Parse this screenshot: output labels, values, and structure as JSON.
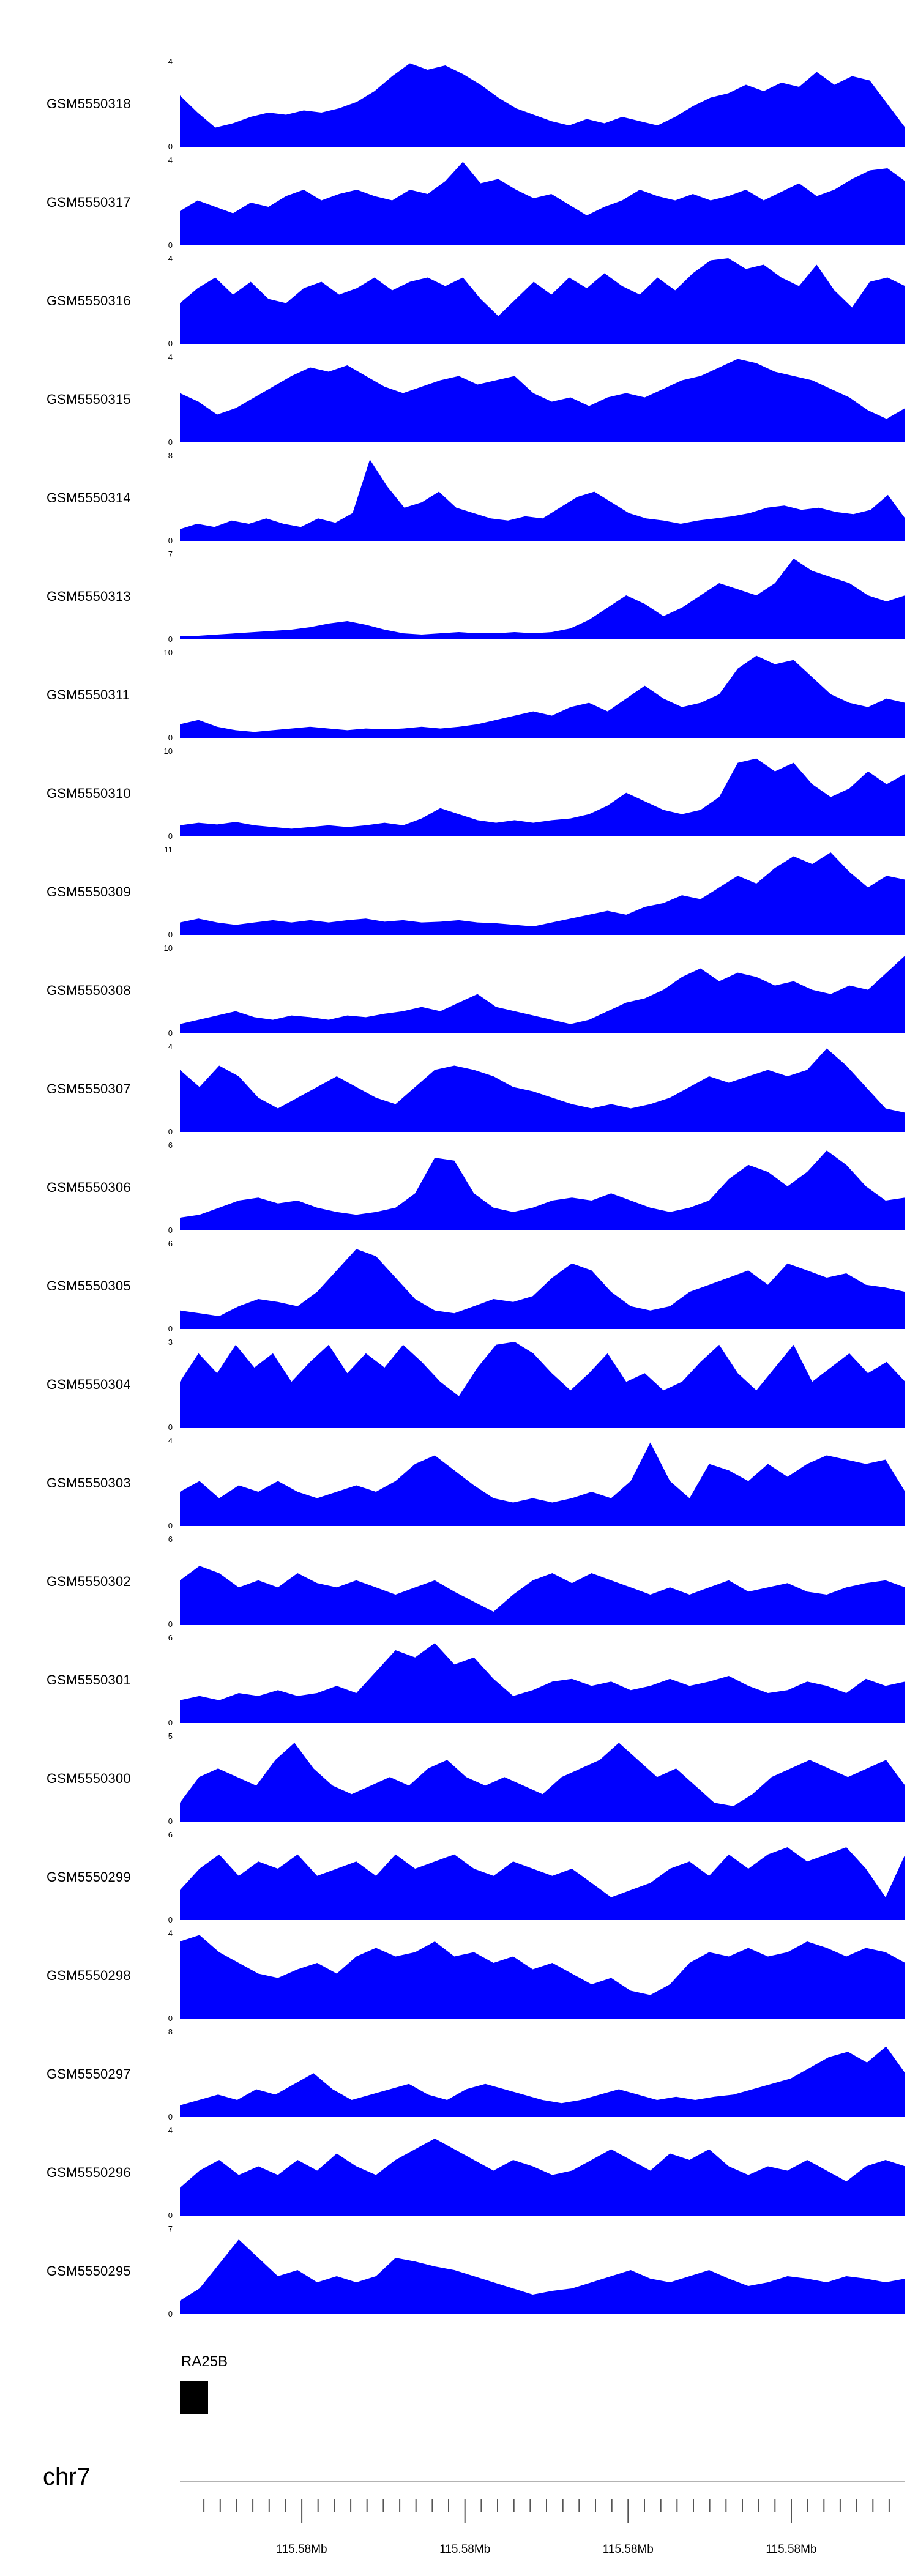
{
  "chart_data": {
    "type": "area",
    "title": "",
    "fill_color": "#0000FF",
    "x_axis": {
      "chromosome": "chr7",
      "tick_labels": [
        "115.58Mb",
        "115.58Mb",
        "115.58Mb",
        "115.58Mb"
      ],
      "tick_label_positions": [
        0.168,
        0.393,
        0.618,
        0.843
      ]
    },
    "gene_track": {
      "label": "RA25B"
    },
    "tracks": [
      {
        "id": "GSM5550318",
        "ymin": 0,
        "ymax": 4,
        "values": [
          2.4,
          1.6,
          0.9,
          1.1,
          1.4,
          1.6,
          1.5,
          1.7,
          1.6,
          1.8,
          2.1,
          2.6,
          3.3,
          3.9,
          3.6,
          3.8,
          3.4,
          2.9,
          2.3,
          1.8,
          1.5,
          1.2,
          1.0,
          1.3,
          1.1,
          1.4,
          1.2,
          1.0,
          1.4,
          1.9,
          2.3,
          2.5,
          2.9,
          2.6,
          3.0,
          2.8,
          3.5,
          2.9,
          3.3,
          3.1,
          2.0,
          0.9
        ]
      },
      {
        "id": "GSM5550317",
        "ymin": 0,
        "ymax": 4,
        "values": [
          1.6,
          2.1,
          1.8,
          1.5,
          2.0,
          1.8,
          2.3,
          2.6,
          2.1,
          2.4,
          2.6,
          2.3,
          2.1,
          2.6,
          2.4,
          3.0,
          3.9,
          2.9,
          3.1,
          2.6,
          2.2,
          2.4,
          1.9,
          1.4,
          1.8,
          2.1,
          2.6,
          2.3,
          2.1,
          2.4,
          2.1,
          2.3,
          2.6,
          2.1,
          2.5,
          2.9,
          2.3,
          2.6,
          3.1,
          3.5,
          3.6,
          3.0
        ]
      },
      {
        "id": "GSM5550316",
        "ymin": 0,
        "ymax": 4,
        "values": [
          1.9,
          2.6,
          3.1,
          2.3,
          2.9,
          2.1,
          1.9,
          2.6,
          2.9,
          2.3,
          2.6,
          3.1,
          2.5,
          2.9,
          3.1,
          2.7,
          3.1,
          2.1,
          1.3,
          2.1,
          2.9,
          2.3,
          3.1,
          2.6,
          3.3,
          2.7,
          2.3,
          3.1,
          2.5,
          3.3,
          3.9,
          4.0,
          3.5,
          3.7,
          3.1,
          2.7,
          3.7,
          2.5,
          1.7,
          2.9,
          3.1,
          2.7
        ]
      },
      {
        "id": "GSM5550315",
        "ymin": 0,
        "ymax": 4,
        "values": [
          2.3,
          1.9,
          1.3,
          1.6,
          2.1,
          2.6,
          3.1,
          3.5,
          3.3,
          3.6,
          3.1,
          2.6,
          2.3,
          2.6,
          2.9,
          3.1,
          2.7,
          2.9,
          3.1,
          2.3,
          1.9,
          2.1,
          1.7,
          2.1,
          2.3,
          2.1,
          2.5,
          2.9,
          3.1,
          3.5,
          3.9,
          3.7,
          3.3,
          3.1,
          2.9,
          2.5,
          2.1,
          1.5,
          1.1,
          1.6
        ]
      },
      {
        "id": "GSM5550314",
        "ymin": 0,
        "ymax": 8,
        "values": [
          1.1,
          1.6,
          1.3,
          1.9,
          1.6,
          2.1,
          1.6,
          1.3,
          2.1,
          1.7,
          2.6,
          7.6,
          5.1,
          3.1,
          3.6,
          4.6,
          3.1,
          2.6,
          2.1,
          1.9,
          2.3,
          2.1,
          3.1,
          4.1,
          4.6,
          3.6,
          2.6,
          2.1,
          1.9,
          1.6,
          1.9,
          2.1,
          2.3,
          2.6,
          3.1,
          3.3,
          2.9,
          3.1,
          2.7,
          2.5,
          2.9,
          4.3,
          2.1
        ]
      },
      {
        "id": "GSM5550313",
        "ymin": 0,
        "ymax": 7,
        "values": [
          0.3,
          0.3,
          0.4,
          0.5,
          0.6,
          0.7,
          0.8,
          1.0,
          1.3,
          1.5,
          1.2,
          0.8,
          0.5,
          0.4,
          0.5,
          0.6,
          0.5,
          0.5,
          0.6,
          0.5,
          0.6,
          0.9,
          1.6,
          2.6,
          3.6,
          2.9,
          1.9,
          2.6,
          3.6,
          4.6,
          4.1,
          3.6,
          4.6,
          6.6,
          5.6,
          5.1,
          4.6,
          3.6,
          3.1,
          3.6
        ]
      },
      {
        "id": "GSM5550311",
        "ymin": 0,
        "ymax": 10,
        "values": [
          1.6,
          2.1,
          1.3,
          0.9,
          0.7,
          0.9,
          1.1,
          1.3,
          1.1,
          0.9,
          1.1,
          1.0,
          1.1,
          1.3,
          1.1,
          1.3,
          1.6,
          2.1,
          2.6,
          3.1,
          2.6,
          3.6,
          4.1,
          3.1,
          4.6,
          6.1,
          4.6,
          3.6,
          4.1,
          5.1,
          8.1,
          9.6,
          8.6,
          9.1,
          7.1,
          5.1,
          4.1,
          3.6,
          4.6,
          4.1
        ]
      },
      {
        "id": "GSM5550310",
        "ymin": 0,
        "ymax": 10,
        "values": [
          1.3,
          1.6,
          1.4,
          1.7,
          1.3,
          1.1,
          0.9,
          1.1,
          1.3,
          1.1,
          1.3,
          1.6,
          1.3,
          2.1,
          3.3,
          2.6,
          1.9,
          1.6,
          1.9,
          1.6,
          1.9,
          2.1,
          2.6,
          3.6,
          5.1,
          4.1,
          3.1,
          2.6,
          3.1,
          4.6,
          8.6,
          9.1,
          7.6,
          8.6,
          6.1,
          4.6,
          5.6,
          7.6,
          6.1,
          7.3
        ]
      },
      {
        "id": "GSM5550309",
        "ymin": 0,
        "ymax": 11,
        "values": [
          1.6,
          2.1,
          1.6,
          1.3,
          1.6,
          1.9,
          1.6,
          1.9,
          1.6,
          1.9,
          2.1,
          1.7,
          1.9,
          1.6,
          1.7,
          1.9,
          1.6,
          1.5,
          1.3,
          1.1,
          1.6,
          2.1,
          2.6,
          3.1,
          2.6,
          3.6,
          4.1,
          5.1,
          4.6,
          6.1,
          7.6,
          6.6,
          8.6,
          10.1,
          9.1,
          10.6,
          8.1,
          6.1,
          7.6,
          7.1
        ]
      },
      {
        "id": "GSM5550308",
        "ymin": 0,
        "ymax": 10,
        "values": [
          1.1,
          1.6,
          2.1,
          2.6,
          1.9,
          1.6,
          2.1,
          1.9,
          1.6,
          2.1,
          1.9,
          2.3,
          2.6,
          3.1,
          2.6,
          3.6,
          4.6,
          3.1,
          2.6,
          2.1,
          1.6,
          1.1,
          1.6,
          2.6,
          3.6,
          4.1,
          5.1,
          6.6,
          7.6,
          6.1,
          7.1,
          6.6,
          5.6,
          6.1,
          5.1,
          4.6,
          5.6,
          5.1,
          7.1,
          9.1
        ]
      },
      {
        "id": "GSM5550307",
        "ymin": 0,
        "ymax": 4,
        "values": [
          2.9,
          2.1,
          3.1,
          2.6,
          1.6,
          1.1,
          1.6,
          2.1,
          2.6,
          2.1,
          1.6,
          1.3,
          2.1,
          2.9,
          3.1,
          2.9,
          2.6,
          2.1,
          1.9,
          1.6,
          1.3,
          1.1,
          1.3,
          1.1,
          1.3,
          1.6,
          2.1,
          2.6,
          2.3,
          2.6,
          2.9,
          2.6,
          2.9,
          3.9,
          3.1,
          2.1,
          1.1,
          0.9
        ]
      },
      {
        "id": "GSM5550306",
        "ymin": 0,
        "ymax": 6,
        "values": [
          0.9,
          1.1,
          1.6,
          2.1,
          2.3,
          1.9,
          2.1,
          1.6,
          1.3,
          1.1,
          1.3,
          1.6,
          2.6,
          5.1,
          4.9,
          2.6,
          1.6,
          1.3,
          1.6,
          2.1,
          2.3,
          2.1,
          2.6,
          2.1,
          1.6,
          1.3,
          1.6,
          2.1,
          3.6,
          4.6,
          4.1,
          3.1,
          4.1,
          5.6,
          4.6,
          3.1,
          2.1,
          2.3
        ]
      },
      {
        "id": "GSM5550305",
        "ymin": 0,
        "ymax": 6,
        "values": [
          1.3,
          1.1,
          0.9,
          1.6,
          2.1,
          1.9,
          1.6,
          2.6,
          4.1,
          5.6,
          5.1,
          3.6,
          2.1,
          1.3,
          1.1,
          1.6,
          2.1,
          1.9,
          2.3,
          3.6,
          4.6,
          4.1,
          2.6,
          1.6,
          1.3,
          1.6,
          2.6,
          3.1,
          3.6,
          4.1,
          3.1,
          4.6,
          4.1,
          3.6,
          3.9,
          3.1,
          2.9,
          2.6
        ]
      },
      {
        "id": "GSM5550304",
        "ymin": 0,
        "ymax": 3,
        "values": [
          1.6,
          2.6,
          1.9,
          2.9,
          2.1,
          2.6,
          1.6,
          2.3,
          2.9,
          1.9,
          2.6,
          2.1,
          2.9,
          2.3,
          1.6,
          1.1,
          2.1,
          2.9,
          3.0,
          2.6,
          1.9,
          1.3,
          1.9,
          2.6,
          1.6,
          1.9,
          1.3,
          1.6,
          2.3,
          2.9,
          1.9,
          1.3,
          2.1,
          2.9,
          1.6,
          2.1,
          2.6,
          1.9,
          2.3,
          1.6
        ]
      },
      {
        "id": "GSM5550303",
        "ymin": 0,
        "ymax": 4,
        "values": [
          1.6,
          2.1,
          1.3,
          1.9,
          1.6,
          2.1,
          1.6,
          1.3,
          1.6,
          1.9,
          1.6,
          2.1,
          2.9,
          3.3,
          2.6,
          1.9,
          1.3,
          1.1,
          1.3,
          1.1,
          1.3,
          1.6,
          1.3,
          2.1,
          3.9,
          2.1,
          1.3,
          2.9,
          2.6,
          2.1,
          2.9,
          2.3,
          2.9,
          3.3,
          3.1,
          2.9,
          3.1,
          1.6
        ]
      },
      {
        "id": "GSM5550302",
        "ymin": 0,
        "ymax": 6,
        "values": [
          3.1,
          4.1,
          3.6,
          2.6,
          3.1,
          2.6,
          3.6,
          2.9,
          2.6,
          3.1,
          2.6,
          2.1,
          2.6,
          3.1,
          2.3,
          1.6,
          0.9,
          2.1,
          3.1,
          3.6,
          2.9,
          3.6,
          3.1,
          2.6,
          2.1,
          2.6,
          2.1,
          2.6,
          3.1,
          2.3,
          2.6,
          2.9,
          2.3,
          2.1,
          2.6,
          2.9,
          3.1,
          2.6
        ]
      },
      {
        "id": "GSM5550301",
        "ymin": 0,
        "ymax": 6,
        "values": [
          1.6,
          1.9,
          1.6,
          2.1,
          1.9,
          2.3,
          1.9,
          2.1,
          2.6,
          2.1,
          3.6,
          5.1,
          4.6,
          5.6,
          4.1,
          4.6,
          3.1,
          1.9,
          2.3,
          2.9,
          3.1,
          2.6,
          2.9,
          2.3,
          2.6,
          3.1,
          2.6,
          2.9,
          3.3,
          2.6,
          2.1,
          2.3,
          2.9,
          2.6,
          2.1,
          3.1,
          2.6,
          2.9
        ]
      },
      {
        "id": "GSM5550300",
        "ymin": 0,
        "ymax": 5,
        "values": [
          1.1,
          2.6,
          3.1,
          2.6,
          2.1,
          3.6,
          4.6,
          3.1,
          2.1,
          1.6,
          2.1,
          2.6,
          2.1,
          3.1,
          3.6,
          2.6,
          2.1,
          2.6,
          2.1,
          1.6,
          2.6,
          3.1,
          3.6,
          4.6,
          3.6,
          2.6,
          3.1,
          2.1,
          1.1,
          0.9,
          1.6,
          2.6,
          3.1,
          3.6,
          3.1,
          2.6,
          3.1,
          3.6,
          2.1
        ]
      },
      {
        "id": "GSM5550299",
        "ymin": 0,
        "ymax": 6,
        "values": [
          2.1,
          3.6,
          4.6,
          3.1,
          4.1,
          3.6,
          4.6,
          3.1,
          3.6,
          4.1,
          3.1,
          4.6,
          3.6,
          4.1,
          4.6,
          3.6,
          3.1,
          4.1,
          3.6,
          3.1,
          3.6,
          2.6,
          1.6,
          2.1,
          2.6,
          3.6,
          4.1,
          3.1,
          4.6,
          3.6,
          4.6,
          5.1,
          4.1,
          4.6,
          5.1,
          3.6,
          1.6,
          4.6
        ]
      },
      {
        "id": "GSM5550298",
        "ymin": 0,
        "ymax": 4,
        "values": [
          3.6,
          3.9,
          3.1,
          2.6,
          2.1,
          1.9,
          2.3,
          2.6,
          2.1,
          2.9,
          3.3,
          2.9,
          3.1,
          3.6,
          2.9,
          3.1,
          2.6,
          2.9,
          2.3,
          2.6,
          2.1,
          1.6,
          1.9,
          1.3,
          1.1,
          1.6,
          2.6,
          3.1,
          2.9,
          3.3,
          2.9,
          3.1,
          3.6,
          3.3,
          2.9,
          3.3,
          3.1,
          2.6
        ]
      },
      {
        "id": "GSM5550297",
        "ymin": 0,
        "ymax": 8,
        "values": [
          1.1,
          1.6,
          2.1,
          1.6,
          2.6,
          2.1,
          3.1,
          4.1,
          2.6,
          1.6,
          2.1,
          2.6,
          3.1,
          2.1,
          1.6,
          2.6,
          3.1,
          2.6,
          2.1,
          1.6,
          1.3,
          1.6,
          2.1,
          2.6,
          2.1,
          1.6,
          1.9,
          1.6,
          1.9,
          2.1,
          2.6,
          3.1,
          3.6,
          4.6,
          5.6,
          6.1,
          5.1,
          6.6,
          4.1
        ]
      },
      {
        "id": "GSM5550296",
        "ymin": 0,
        "ymax": 4,
        "values": [
          1.3,
          2.1,
          2.6,
          1.9,
          2.3,
          1.9,
          2.6,
          2.1,
          2.9,
          2.3,
          1.9,
          2.6,
          3.1,
          3.6,
          3.1,
          2.6,
          2.1,
          2.6,
          2.3,
          1.9,
          2.1,
          2.6,
          3.1,
          2.6,
          2.1,
          2.9,
          2.6,
          3.1,
          2.3,
          1.9,
          2.3,
          2.1,
          2.6,
          2.1,
          1.6,
          2.3,
          2.6,
          2.3
        ]
      },
      {
        "id": "GSM5550295",
        "ymin": 0,
        "ymax": 7,
        "values": [
          1.1,
          2.1,
          4.1,
          6.1,
          4.6,
          3.1,
          3.6,
          2.6,
          3.1,
          2.6,
          3.1,
          4.6,
          4.3,
          3.9,
          3.6,
          3.1,
          2.6,
          2.1,
          1.6,
          1.9,
          2.1,
          2.6,
          3.1,
          3.6,
          2.9,
          2.6,
          3.1,
          3.6,
          2.9,
          2.3,
          2.6,
          3.1,
          2.9,
          2.6,
          3.1,
          2.9,
          2.6,
          2.9
        ]
      }
    ]
  }
}
